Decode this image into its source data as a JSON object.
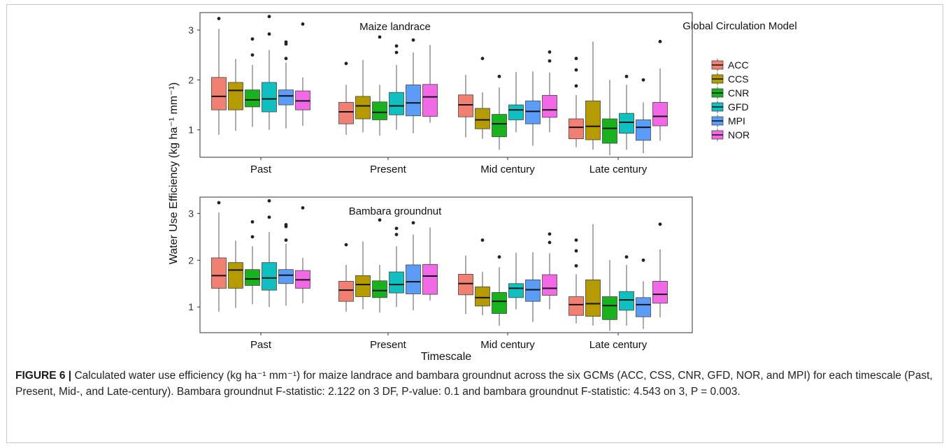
{
  "figure": {
    "label": "FIGURE 6 |",
    "caption_text": "Calculated water use efficiency (kg ha⁻¹ mm⁻¹) for maize landrace and bambara groundnut across the six GCMs (ACC, CSS, CNR, GFD, NOR, and MPI) for each timescale (Past, Present, Mid-, and Late-century). Bambara groundnut F-statistic: 2.122 on 3 DF, P-value: 0.1 and bambara groundnut F-statistic: 4.543 on 3, P = 0.003."
  },
  "colors": {
    "ACC": "#f17f72",
    "CCS": "#b59a00",
    "CNR": "#19b21e",
    "GFD": "#10bfc0",
    "MPI": "#5b9cf8",
    "NOR": "#f268e6"
  },
  "chart_data": {
    "type": "box",
    "xlabel": "Timescale",
    "ylabel": "Water Use Efficiency (kg ha⁻¹ mm⁻¹)",
    "yticks": [
      1,
      2,
      3
    ],
    "ylim": [
      0.45,
      3.35
    ],
    "categories": [
      "Past",
      "Present",
      "Mid century",
      "Late century"
    ],
    "legend": {
      "title": "Global Circulation Model",
      "position": "right",
      "entries": [
        "ACC",
        "CCS",
        "CNR",
        "GFD",
        "MPI",
        "NOR"
      ]
    },
    "panels": [
      {
        "title": "Maize landrace",
        "groups": [
          {
            "category": "Past",
            "boxes": [
              {
                "model": "ACC",
                "min": 0.9,
                "q1": 1.4,
                "median": 1.67,
                "q3": 2.05,
                "max": 3.02,
                "outliers": [
                  3.23
                ]
              },
              {
                "model": "CCS",
                "min": 0.98,
                "q1": 1.4,
                "median": 1.79,
                "q3": 1.95,
                "max": 2.42,
                "outliers": []
              },
              {
                "model": "CNR",
                "min": 1.06,
                "q1": 1.46,
                "median": 1.6,
                "q3": 1.8,
                "max": 2.3,
                "outliers": [
                  2.5,
                  2.82
                ]
              },
              {
                "model": "GFD",
                "min": 1.0,
                "q1": 1.36,
                "median": 1.62,
                "q3": 1.95,
                "max": 2.6,
                "outliers": [
                  2.92,
                  3.27
                ]
              },
              {
                "model": "MPI",
                "min": 1.03,
                "q1": 1.5,
                "median": 1.68,
                "q3": 1.8,
                "max": 2.35,
                "outliers": [
                  2.43,
                  2.72,
                  2.76
                ]
              },
              {
                "model": "NOR",
                "min": 1.08,
                "q1": 1.4,
                "median": 1.58,
                "q3": 1.78,
                "max": 2.05,
                "outliers": [
                  3.12
                ]
              }
            ]
          },
          {
            "category": "Present",
            "boxes": [
              {
                "model": "ACC",
                "min": 0.9,
                "q1": 1.12,
                "median": 1.36,
                "q3": 1.55,
                "max": 1.9,
                "outliers": [
                  2.33
                ]
              },
              {
                "model": "CCS",
                "min": 0.95,
                "q1": 1.22,
                "median": 1.48,
                "q3": 1.67,
                "max": 2.4,
                "outliers": []
              },
              {
                "model": "CNR",
                "min": 0.88,
                "q1": 1.2,
                "median": 1.35,
                "q3": 1.56,
                "max": 1.9,
                "outliers": [
                  2.86
                ]
              },
              {
                "model": "GFD",
                "min": 1.0,
                "q1": 1.3,
                "median": 1.48,
                "q3": 1.75,
                "max": 2.3,
                "outliers": [
                  2.55,
                  2.68
                ]
              },
              {
                "model": "MPI",
                "min": 0.93,
                "q1": 1.28,
                "median": 1.54,
                "q3": 1.9,
                "max": 2.55,
                "outliers": [
                  2.8
                ]
              },
              {
                "model": "NOR",
                "min": 1.14,
                "q1": 1.27,
                "median": 1.66,
                "q3": 1.91,
                "max": 2.7,
                "outliers": []
              }
            ]
          },
          {
            "category": "Mid century",
            "boxes": [
              {
                "model": "ACC",
                "min": 0.85,
                "q1": 1.26,
                "median": 1.5,
                "q3": 1.7,
                "max": 2.1,
                "outliers": []
              },
              {
                "model": "CCS",
                "min": 0.82,
                "q1": 1.02,
                "median": 1.2,
                "q3": 1.43,
                "max": 1.75,
                "outliers": [
                  2.43
                ]
              },
              {
                "model": "CNR",
                "min": 0.6,
                "q1": 0.86,
                "median": 1.12,
                "q3": 1.31,
                "max": 1.85,
                "outliers": [
                  2.07
                ]
              },
              {
                "model": "GFD",
                "min": 0.95,
                "q1": 1.2,
                "median": 1.4,
                "q3": 1.5,
                "max": 2.16,
                "outliers": []
              },
              {
                "model": "MPI",
                "min": 0.68,
                "q1": 1.12,
                "median": 1.37,
                "q3": 1.58,
                "max": 2.17,
                "outliers": []
              },
              {
                "model": "NOR",
                "min": 0.95,
                "q1": 1.25,
                "median": 1.4,
                "q3": 1.69,
                "max": 2.15,
                "outliers": [
                  2.38,
                  2.56
                ]
              }
            ]
          },
          {
            "category": "Late century",
            "boxes": [
              {
                "model": "ACC",
                "min": 0.65,
                "q1": 0.82,
                "median": 1.05,
                "q3": 1.22,
                "max": 1.7,
                "outliers": [
                  1.88,
                  2.2,
                  2.43
                ]
              },
              {
                "model": "CCS",
                "min": 0.6,
                "q1": 0.8,
                "median": 1.07,
                "q3": 1.58,
                "max": 2.77,
                "outliers": []
              },
              {
                "model": "CNR",
                "min": 0.49,
                "q1": 0.73,
                "median": 1.03,
                "q3": 1.22,
                "max": 2.0,
                "outliers": []
              },
              {
                "model": "GFD",
                "min": 0.6,
                "q1": 0.93,
                "median": 1.15,
                "q3": 1.33,
                "max": 1.9,
                "outliers": [
                  2.07
                ]
              },
              {
                "model": "MPI",
                "min": 0.53,
                "q1": 0.79,
                "median": 1.05,
                "q3": 1.2,
                "max": 1.55,
                "outliers": [
                  2.0
                ]
              },
              {
                "model": "NOR",
                "min": 0.78,
                "q1": 1.08,
                "median": 1.27,
                "q3": 1.55,
                "max": 2.23,
                "outliers": [
                  2.77
                ]
              }
            ]
          }
        ]
      },
      {
        "title": "Bambara groundnut",
        "groups": [
          {
            "category": "Past",
            "boxes": [
              {
                "model": "ACC",
                "min": 0.9,
                "q1": 1.4,
                "median": 1.67,
                "q3": 2.05,
                "max": 3.02,
                "outliers": [
                  3.23
                ]
              },
              {
                "model": "CCS",
                "min": 0.98,
                "q1": 1.4,
                "median": 1.79,
                "q3": 1.95,
                "max": 2.42,
                "outliers": []
              },
              {
                "model": "CNR",
                "min": 1.06,
                "q1": 1.46,
                "median": 1.6,
                "q3": 1.8,
                "max": 2.3,
                "outliers": [
                  2.5,
                  2.82
                ]
              },
              {
                "model": "GFD",
                "min": 1.0,
                "q1": 1.36,
                "median": 1.62,
                "q3": 1.95,
                "max": 2.6,
                "outliers": [
                  2.92,
                  3.27
                ]
              },
              {
                "model": "MPI",
                "min": 1.03,
                "q1": 1.5,
                "median": 1.68,
                "q3": 1.8,
                "max": 2.35,
                "outliers": [
                  2.43,
                  2.72,
                  2.76
                ]
              },
              {
                "model": "NOR",
                "min": 1.08,
                "q1": 1.4,
                "median": 1.58,
                "q3": 1.78,
                "max": 2.05,
                "outliers": [
                  3.12
                ]
              }
            ]
          },
          {
            "category": "Present",
            "boxes": [
              {
                "model": "ACC",
                "min": 0.9,
                "q1": 1.12,
                "median": 1.36,
                "q3": 1.55,
                "max": 1.9,
                "outliers": [
                  2.33
                ]
              },
              {
                "model": "CCS",
                "min": 0.95,
                "q1": 1.22,
                "median": 1.48,
                "q3": 1.67,
                "max": 2.4,
                "outliers": []
              },
              {
                "model": "CNR",
                "min": 0.88,
                "q1": 1.2,
                "median": 1.35,
                "q3": 1.56,
                "max": 1.9,
                "outliers": [
                  2.86
                ]
              },
              {
                "model": "GFD",
                "min": 1.0,
                "q1": 1.3,
                "median": 1.48,
                "q3": 1.75,
                "max": 2.3,
                "outliers": [
                  2.55,
                  2.68
                ]
              },
              {
                "model": "MPI",
                "min": 0.93,
                "q1": 1.28,
                "median": 1.54,
                "q3": 1.9,
                "max": 2.55,
                "outliers": [
                  2.8
                ]
              },
              {
                "model": "NOR",
                "min": 1.14,
                "q1": 1.27,
                "median": 1.66,
                "q3": 1.91,
                "max": 2.7,
                "outliers": []
              }
            ]
          },
          {
            "category": "Mid century",
            "boxes": [
              {
                "model": "ACC",
                "min": 0.85,
                "q1": 1.26,
                "median": 1.5,
                "q3": 1.7,
                "max": 2.1,
                "outliers": []
              },
              {
                "model": "CCS",
                "min": 0.82,
                "q1": 1.02,
                "median": 1.2,
                "q3": 1.43,
                "max": 1.75,
                "outliers": [
                  2.43
                ]
              },
              {
                "model": "CNR",
                "min": 0.6,
                "q1": 0.86,
                "median": 1.12,
                "q3": 1.31,
                "max": 1.85,
                "outliers": [
                  2.07
                ]
              },
              {
                "model": "GFD",
                "min": 0.95,
                "q1": 1.2,
                "median": 1.4,
                "q3": 1.5,
                "max": 2.16,
                "outliers": []
              },
              {
                "model": "MPI",
                "min": 0.68,
                "q1": 1.12,
                "median": 1.37,
                "q3": 1.58,
                "max": 2.17,
                "outliers": []
              },
              {
                "model": "NOR",
                "min": 0.95,
                "q1": 1.25,
                "median": 1.4,
                "q3": 1.69,
                "max": 2.15,
                "outliers": [
                  2.38,
                  2.56
                ]
              }
            ]
          },
          {
            "category": "Late century",
            "boxes": [
              {
                "model": "ACC",
                "min": 0.65,
                "q1": 0.82,
                "median": 1.05,
                "q3": 1.22,
                "max": 1.7,
                "outliers": [
                  1.88,
                  2.2,
                  2.43
                ]
              },
              {
                "model": "CCS",
                "min": 0.6,
                "q1": 0.8,
                "median": 1.07,
                "q3": 1.58,
                "max": 2.77,
                "outliers": []
              },
              {
                "model": "CNR",
                "min": 0.49,
                "q1": 0.73,
                "median": 1.03,
                "q3": 1.22,
                "max": 2.0,
                "outliers": []
              },
              {
                "model": "GFD",
                "min": 0.6,
                "q1": 0.93,
                "median": 1.15,
                "q3": 1.33,
                "max": 1.9,
                "outliers": [
                  2.07
                ]
              },
              {
                "model": "MPI",
                "min": 0.53,
                "q1": 0.79,
                "median": 1.05,
                "q3": 1.2,
                "max": 1.55,
                "outliers": [
                  2.0
                ]
              },
              {
                "model": "NOR",
                "min": 0.78,
                "q1": 1.08,
                "median": 1.27,
                "q3": 1.55,
                "max": 2.23,
                "outliers": [
                  2.77
                ]
              }
            ]
          }
        ]
      }
    ]
  }
}
